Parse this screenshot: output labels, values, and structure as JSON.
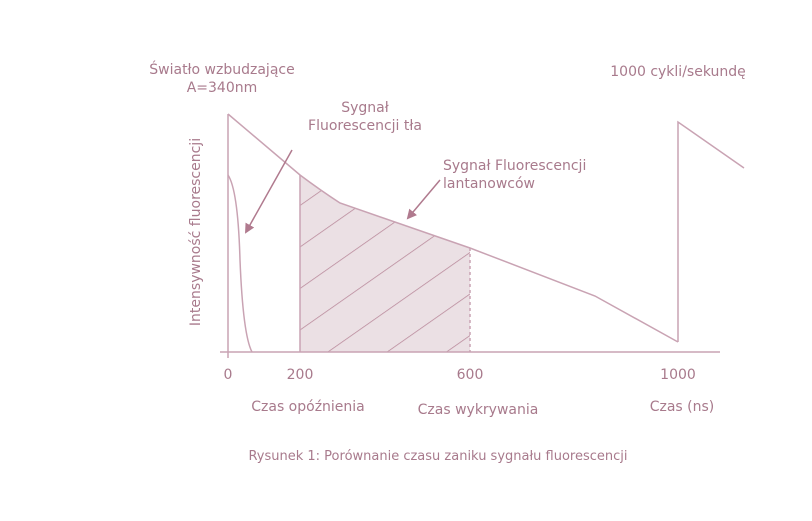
{
  "diagram": {
    "excitation_label": [
      "Światło wzbudzające",
      "A=340nm"
    ],
    "rate_label": "1000 cykli/sekundę",
    "background_label": [
      "Sygnał",
      "Fluorescencji tła"
    ],
    "lanthanide_label": [
      "Sygnał Fluorescencji",
      "lantanowców"
    ],
    "y_axis_label": "Intensywność fluorescencji",
    "x_ticks": [
      "0",
      "200",
      "600",
      "1000"
    ],
    "delay_label": "Czas opóźnienia",
    "detection_label": "Czas wykrywania",
    "x_axis_label": "Czas (ns)",
    "caption": "Rysunek 1: Porównanie czasu zaniku sygnału fluorescencji"
  }
}
